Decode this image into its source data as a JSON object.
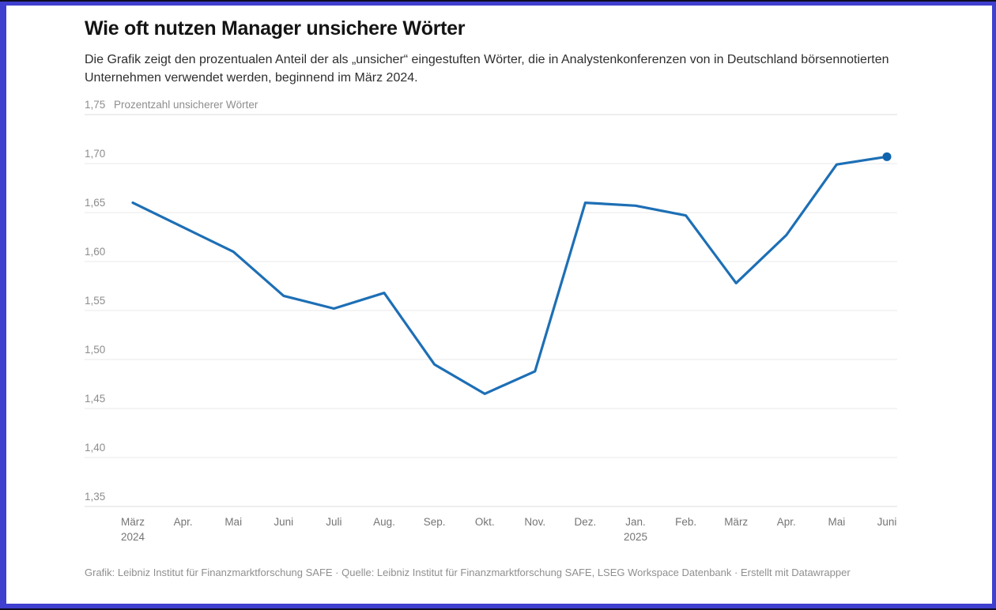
{
  "frame": {
    "border_color": "#3f3fd0"
  },
  "header": {
    "title": "Wie oft nutzen Manager unsichere Wörter",
    "subtitle": "Die Grafik zeigt den prozentualen Anteil der als „unsicher“ eingestuften Wörter, die in Analystenkonferenzen von in Deutschland börsennotierten Unternehmen verwendet werden, beginnend im März 2024."
  },
  "chart_data": {
    "type": "line",
    "title": "Wie oft nutzen Manager unsichere Wörter",
    "ylabel": "Prozentzahl unsicherer Wörter",
    "xlabel": "",
    "ylim": [
      1.35,
      1.75
    ],
    "grid": true,
    "legend": "none",
    "line_color": "#1d6fb5",
    "marker_color": "#0f64ad",
    "grid_color": "#e9e9e9",
    "grid_edge_color": "#dcdcdc",
    "y_tick_color": "#8d8d8d",
    "x_tick_color": "#757575",
    "x": [
      "März 2024",
      "Apr. 2024",
      "Mai 2024",
      "Juni 2024",
      "Juli 2024",
      "Aug. 2024",
      "Sep. 2024",
      "Okt. 2024",
      "Nov. 2024",
      "Dez. 2024",
      "Jan. 2025",
      "Feb. 2025",
      "März 2025",
      "Apr. 2025",
      "Mai 2025",
      "Juni 2025"
    ],
    "values": [
      1.66,
      1.635,
      1.61,
      1.565,
      1.552,
      1.568,
      1.495,
      1.465,
      1.488,
      1.66,
      1.657,
      1.647,
      1.578,
      1.627,
      1.699,
      1.707
    ],
    "x_tick_labels": [
      {
        "label": "März",
        "sub": "2024"
      },
      {
        "label": "Apr."
      },
      {
        "label": "Mai"
      },
      {
        "label": "Juni"
      },
      {
        "label": "Juli"
      },
      {
        "label": "Aug."
      },
      {
        "label": "Sep."
      },
      {
        "label": "Okt."
      },
      {
        "label": "Nov."
      },
      {
        "label": "Dez."
      },
      {
        "label": "Jan.",
        "sub": "2025"
      },
      {
        "label": "Feb."
      },
      {
        "label": "März"
      },
      {
        "label": "Apr."
      },
      {
        "label": "Mai"
      },
      {
        "label": "Juni"
      }
    ],
    "y_ticks": [
      {
        "value": 1.75,
        "label": "1,75"
      },
      {
        "value": 1.7,
        "label": "1,70"
      },
      {
        "value": 1.65,
        "label": "1,65"
      },
      {
        "value": 1.6,
        "label": "1,60"
      },
      {
        "value": 1.55,
        "label": "1,55"
      },
      {
        "value": 1.5,
        "label": "1,50"
      },
      {
        "value": 1.45,
        "label": "1,45"
      },
      {
        "value": 1.4,
        "label": "1,40"
      },
      {
        "value": 1.35,
        "label": "1,35"
      }
    ]
  },
  "footer": {
    "text": "Grafik: Leibniz Institut für Finanzmarktforschung SAFE · Quelle: Leibniz Institut für Finanzmarktforschung SAFE, LSEG Workspace Datenbank · Erstellt mit Datawrapper"
  }
}
